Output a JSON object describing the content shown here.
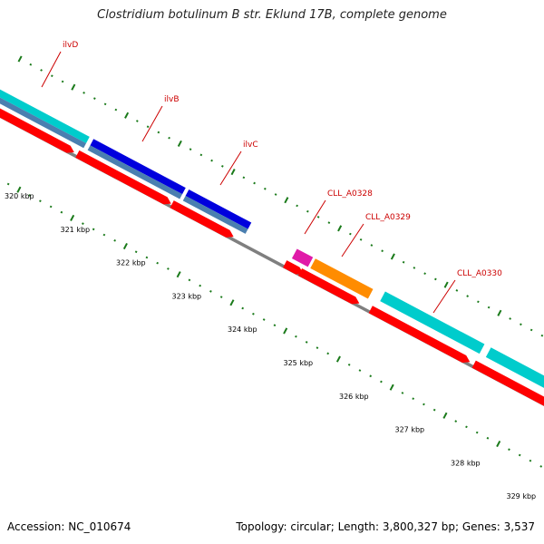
{
  "title": "Clostridium botulinum B str. Eklund 17B, complete genome",
  "footer": {
    "accession": "Accession: NC_010674",
    "stats": "Topology: circular; Length: 3,800,327 bp; Genes: 3,537"
  },
  "colors": {
    "backbone": "#7f7f7f",
    "cds": "#ff0000",
    "tick": "#1a7a1a",
    "label": "#cc0000"
  },
  "kbp_labels": [
    "320 kbp",
    "321 kbp",
    "322 kbp",
    "323 kbp",
    "324 kbp",
    "325 kbp",
    "326 kbp",
    "327 kbp",
    "328 kbp",
    "329 kbp"
  ],
  "genes": [
    {
      "name": "ilvD",
      "color": "#00cccc"
    },
    {
      "name": "ilvB",
      "color": "#0000dd"
    },
    {
      "name": "ilvC",
      "color": "#0000dd"
    },
    {
      "name": "CLL_A0328",
      "color": "#e01aa8"
    },
    {
      "name": "CLL_A0329",
      "color": "#ff8c00"
    },
    {
      "name": "CLL_A0330",
      "color": "#00cccc"
    }
  ]
}
